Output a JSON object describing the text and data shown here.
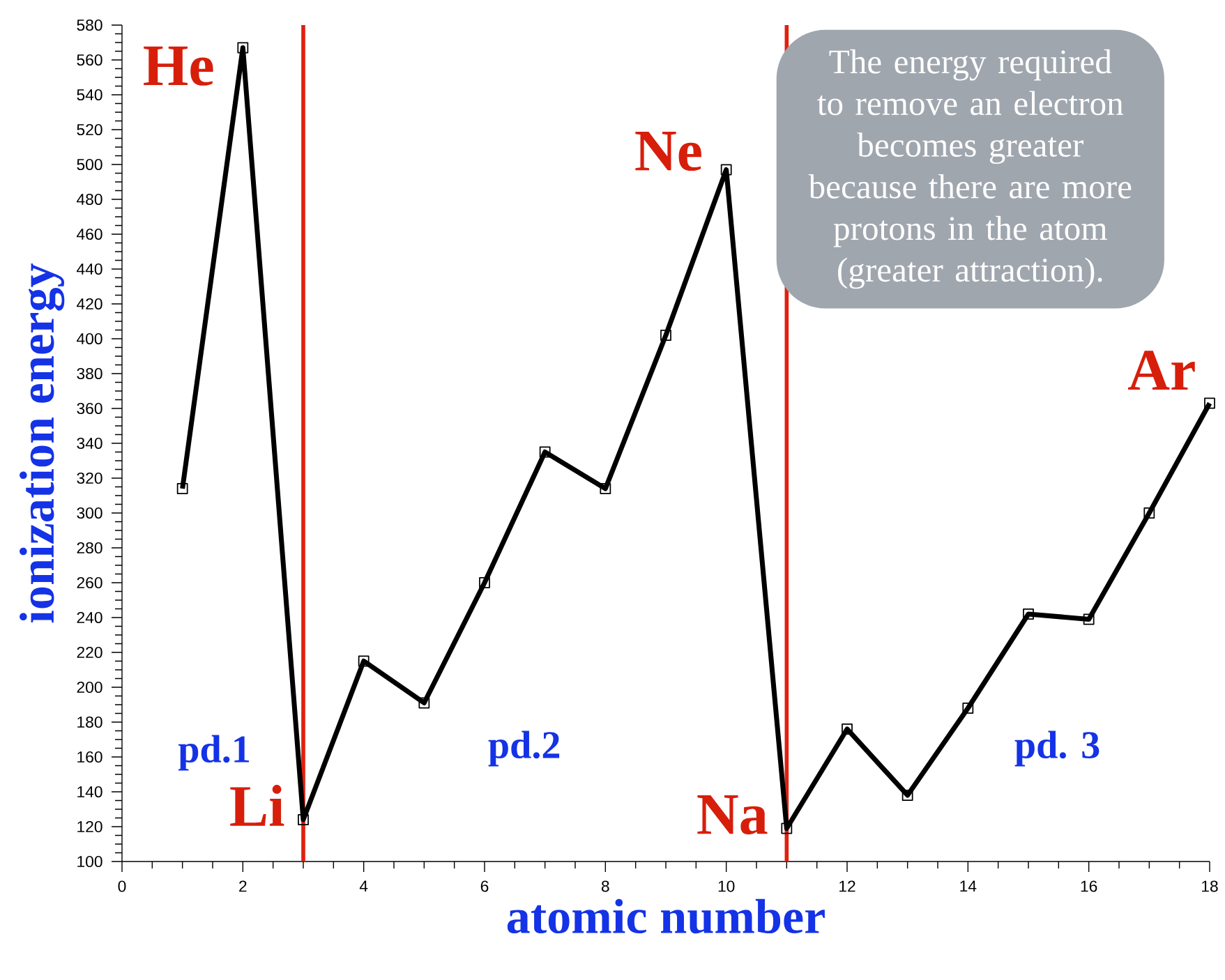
{
  "chart_data": {
    "type": "line",
    "xlabel": "atomic number",
    "ylabel": "ionization energy",
    "x": [
      1,
      2,
      3,
      4,
      5,
      6,
      7,
      8,
      9,
      10,
      11,
      12,
      13,
      14,
      15,
      16,
      17,
      18
    ],
    "series": [
      {
        "color": "#000000",
        "values": [
          314,
          567,
          124,
          215,
          191,
          260,
          335,
          314,
          402,
          497,
          119,
          176,
          138,
          188,
          242,
          239,
          300,
          363
        ]
      }
    ],
    "marker": "square",
    "line_style": "solid",
    "xlim": [
      0,
      18
    ],
    "xticks": [
      0,
      2,
      4,
      6,
      8,
      10,
      12,
      14,
      16,
      18
    ],
    "ylim": [
      100,
      580
    ],
    "yticks": [
      100,
      120,
      140,
      160,
      180,
      200,
      220,
      240,
      260,
      280,
      300,
      320,
      340,
      360,
      380,
      400,
      420,
      440,
      460,
      480,
      500,
      520,
      540,
      560,
      580
    ],
    "ref_lines": [
      {
        "axis": "x",
        "value": 3,
        "color": "#e02010"
      },
      {
        "axis": "x",
        "value": 11,
        "color": "#e02010"
      }
    ],
    "annotations": [
      {
        "text": "He",
        "x": 2,
        "y": 567
      },
      {
        "text": "Li",
        "x": 3,
        "y": 124
      },
      {
        "text": "Ne",
        "x": 10,
        "y": 497
      },
      {
        "text": "Na",
        "x": 11,
        "y": 119
      },
      {
        "text": "Ar",
        "x": 18,
        "y": 363
      },
      "pd.1",
      "pd.2",
      "pd. 3",
      "The energy required to remove an electron becomes greater because there are more protons in the atom (greater attraction)."
    ],
    "grid": false
  }
}
